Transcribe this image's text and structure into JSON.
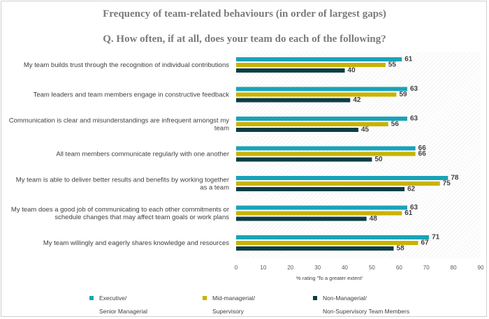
{
  "colors": {
    "executive": "#1aa3b8",
    "mid": "#c9b300",
    "non": "#0c3c44"
  },
  "chart_data": {
    "type": "bar",
    "orientation": "horizontal",
    "title": "Frequency of team-related behaviours (in order of largest gaps)",
    "subtitle": "Q. How often, if at all, does your team do each of the following?",
    "xlabel": "% rating 'To a greater extent'",
    "xlim": [
      0,
      90
    ],
    "xticks": [
      "0",
      "10",
      "20",
      "30",
      "40",
      "50",
      "60",
      "70",
      "80",
      "90"
    ],
    "categories": [
      [
        "My team builds trust through the recognition of individual contributions"
      ],
      [
        "Team leaders and team members engage in constructive feedback"
      ],
      [
        "Communication is clear and misunderstandings are infrequent amongst my",
        "team"
      ],
      [
        "All team members communicate regularly with one another"
      ],
      [
        "My team is able to deliver better results and benefits by working together",
        "as a team"
      ],
      [
        "My team does a good job of communicating to each other commitments or",
        "schedule changes that may affect team goals or work plans"
      ],
      [
        "My team willingly and eagerly shares knowledge and resources"
      ]
    ],
    "series": [
      {
        "name": [
          "Executive/",
          "Senior Managerial"
        ],
        "color": "#1aa3b8",
        "values": [
          61,
          63,
          63,
          66,
          78,
          63,
          71
        ]
      },
      {
        "name": [
          "Mid-managerial/",
          "Supervisory"
        ],
        "color": "#c9b300",
        "values": [
          55,
          59,
          56,
          66,
          75,
          61,
          67
        ]
      },
      {
        "name": [
          "Non-Managerial/",
          "Non-Supervisory Team Members"
        ],
        "color": "#0c3c44",
        "values": [
          40,
          42,
          45,
          50,
          62,
          48,
          58
        ]
      }
    ],
    "legend_position": "bottom",
    "grid": false
  }
}
